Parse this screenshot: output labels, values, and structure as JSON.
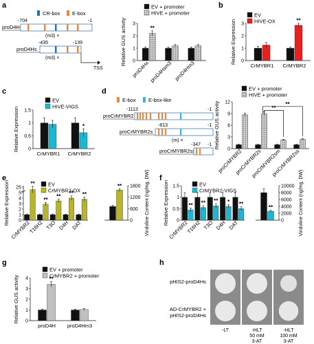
{
  "colors": {
    "black": "#111111",
    "hive_red": "#e8201f",
    "vigs_cyan": "#1bb7d3",
    "ox_olive": "#b8b52a",
    "gray_bar": "#c0c0c0",
    "grid_bar": "#8f8f8f",
    "cr_box": "#2f6fb5",
    "e_box": "#e88a3c",
    "e_box_like": "#38b8dc",
    "yeast_bg": "#8b8b8b",
    "yeast_colony": "#e9e9e9"
  },
  "panels": {
    "a": {
      "label": "a",
      "diagram": {
        "legend_cr": "CR-box",
        "legend_e": "E-box",
        "pro1": "proD4H",
        "pro1_start": "-704",
        "pro1_end": "-1",
        "mut": "(m3) ×",
        "pro2": "proD4Hs",
        "pro2_start": "-435",
        "pro2_end": "-139",
        "mut2": "(m3) ×",
        "tss": "TSS"
      },
      "legend": [
        "EV + promoter",
        "HIVE + promoter"
      ]
    },
    "b": {
      "label": "b",
      "legend": [
        "EV",
        "HIVE-OX"
      ]
    },
    "c": {
      "label": "c",
      "legend": [
        "EV",
        "HIVE-VIGS"
      ]
    },
    "d": {
      "label": "d",
      "diagram": {
        "legend_e": "E-box",
        "legend_el": "E-box-like",
        "pro1": "proCrMYBR2",
        "pro1_start": "-1113",
        "pro1_end": "-1",
        "pro2": "proCrMYBR2s",
        "pro2_start": "-813",
        "pro2_end": "-1",
        "mut": "(m) ×",
        "pro3": "proCrMYBR2ss",
        "pro3_start": "-347",
        "pro3_end": "-1"
      },
      "legend": [
        "EV + promoter",
        "HIVE + promoter"
      ]
    },
    "e": {
      "label": "e",
      "legend": [
        "EV",
        "CrMYBR2-OX"
      ]
    },
    "f": {
      "label": "f",
      "legend": [
        "EV",
        "CrMYBR2-VIGS"
      ]
    },
    "g": {
      "label": "g",
      "legend": [
        "EV + promoter",
        "CrMYBR2 + promoter"
      ]
    },
    "h": {
      "label": "h",
      "rows": [
        "pHIS2-proD4Hs",
        "AD-CrMYBR2 +\npHIS2-proD4Hs"
      ],
      "cols": [
        "-LT",
        "-HLT\n50 mM\n3-AT",
        "-HLT\n100 mM\n3-AT"
      ],
      "growth": [
        [
          1,
          1,
          0.8
        ],
        [
          1,
          1,
          0.95
        ]
      ]
    }
  },
  "chart_data": [
    {
      "panel": "a",
      "type": "bar",
      "categories": [
        "proD4Hs",
        "proD4Hsm3",
        "proD4Hm3"
      ],
      "series": [
        {
          "name": "EV + promoter",
          "values": [
            1.0,
            1.0,
            1.0
          ],
          "errors": [
            0.1,
            0.1,
            0.1
          ]
        },
        {
          "name": "HIVE + promoter",
          "values": [
            2.2,
            1.2,
            1.2
          ],
          "errors": [
            0.2,
            0.1,
            0.1
          ]
        }
      ],
      "significance": [
        "**",
        "",
        ""
      ],
      "ylabel": "Relative GUS activity",
      "ylim": [
        0,
        3
      ],
      "yticks": [
        0,
        1,
        2,
        3
      ]
    },
    {
      "panel": "b",
      "type": "bar",
      "categories": [
        "CrMYBR1",
        "CrMYBR2"
      ],
      "series": [
        {
          "name": "EV",
          "values": [
            1.0,
            1.0
          ],
          "errors": [
            0.15,
            0.1
          ]
        },
        {
          "name": "HIVE-OX",
          "values": [
            1.25,
            2.85
          ],
          "errors": [
            0.2,
            0.15
          ]
        }
      ],
      "significance": [
        "",
        "**"
      ],
      "ylabel": "Relative Expression",
      "ylim": [
        0,
        3
      ],
      "yticks": [
        0,
        1,
        2,
        3
      ]
    },
    {
      "panel": "c",
      "type": "bar",
      "categories": [
        "CrMYBR1",
        "CrMYBR2"
      ],
      "series": [
        {
          "name": "EV",
          "values": [
            1.0,
            1.0
          ],
          "errors": [
            0.2,
            0.2
          ]
        },
        {
          "name": "HIVE-VIGS",
          "values": [
            0.95,
            0.62
          ],
          "errors": [
            0.15,
            0.15
          ]
        }
      ],
      "significance": [
        "",
        "*"
      ],
      "ylabel": "Relative Expression",
      "ylim": [
        0,
        1.5
      ],
      "yticks": [
        0,
        0.5,
        1,
        1.5
      ]
    },
    {
      "panel": "d",
      "type": "bar",
      "categories": [
        "proCrMYBR2",
        "proCrMYBR2s",
        "proCrMYBR2sm",
        "proCrMYBR2ss"
      ],
      "series": [
        {
          "name": "EV + promoter",
          "values": [
            1.0,
            1.0,
            1.0,
            1.0
          ],
          "errors": [
            0.1,
            0.1,
            0.1,
            0.1
          ]
        },
        {
          "name": "HIVE + promoter",
          "values": [
            8.7,
            9.0,
            2.2,
            2.4
          ],
          "errors": [
            0.4,
            0.5,
            0.2,
            0.2
          ]
        }
      ],
      "brackets": [
        [
          "proCrMYBR2s",
          "proCrMYBR2sm",
          "**"
        ],
        [
          "proCrMYBR2s",
          "proCrMYBR2ss",
          "**"
        ]
      ],
      "ylabel": "Relative GUS activity",
      "ylim": [
        0,
        12
      ],
      "yticks": [
        0,
        3,
        6,
        9,
        12
      ]
    },
    {
      "panel": "e",
      "type": "bar",
      "categories": [
        "CrMYBR2",
        "T16H2",
        "T3O",
        "D4H",
        "DAT"
      ],
      "series": [
        {
          "name": "EV",
          "values": [
            1.0,
            1.0,
            1.0,
            1.0,
            1.0
          ],
          "errors": [
            0.1,
            0.1,
            0.1,
            0.1,
            0.1
          ]
        },
        {
          "name": "CrMYBR2-OX",
          "values": [
            22.0,
            2.9,
            3.5,
            4.0,
            3.8
          ],
          "errors": [
            4.0,
            0.3,
            0.3,
            0.4,
            0.4
          ]
        }
      ],
      "significance": [
        "**",
        "**",
        "**",
        "**",
        "**"
      ],
      "ylabel": "Relative Expression",
      "yticks": [
        0,
        1,
        2,
        3,
        4,
        5,
        25
      ],
      "secondary": {
        "categories": [
          "EV",
          "CrMYBR2-OX"
        ],
        "values": [
          720,
          1570
        ],
        "errors": [
          60,
          70
        ],
        "significance": [
          "",
          "**"
        ],
        "ylabel": "Vindoline Content (ng/mg, DW)",
        "ylim": [
          0,
          1800
        ],
        "yticks": [
          0,
          600,
          1200,
          1800
        ]
      }
    },
    {
      "panel": "f",
      "type": "bar",
      "categories": [
        "CrMYBR2",
        "T16H2",
        "T3O",
        "D4H",
        "DAT"
      ],
      "series": [
        {
          "name": "EV",
          "values": [
            1.0,
            1.0,
            1.0,
            1.0,
            1.0
          ],
          "errors": [
            0.2,
            0.2,
            0.2,
            0.2,
            0.2
          ]
        },
        {
          "name": "CrMYBR2-VIGS",
          "values": [
            0.45,
            0.55,
            0.62,
            0.6,
            0.5
          ],
          "errors": [
            0.08,
            0.08,
            0.1,
            0.08,
            0.08
          ]
        }
      ],
      "significance": [
        "**",
        "**",
        "**",
        "*",
        "**"
      ],
      "ylabel": "Relative Expression",
      "ylim": [
        0,
        1.5
      ],
      "yticks": [
        0,
        0.5,
        1,
        1.5
      ],
      "secondary": {
        "categories": [
          "EV",
          "CrMYBR2-VIGS"
        ],
        "values": [
          8000,
          2600
        ],
        "errors": [
          1200,
          300
        ],
        "significance": [
          "",
          "**"
        ],
        "ylabel": "Vindoline Content (ng/mg, DW)",
        "ylim": [
          0,
          10000
        ],
        "yticks": [
          0,
          2000,
          4000,
          6000,
          8000,
          10000
        ]
      }
    },
    {
      "panel": "g",
      "type": "bar",
      "categories": [
        "proD4H",
        "proD4Hm3"
      ],
      "series": [
        {
          "name": "EV + promoter",
          "values": [
            1.0,
            1.0
          ],
          "errors": [
            0.08,
            0.08
          ]
        },
        {
          "name": "CrMYBR2 + promoter",
          "values": [
            3.4,
            1.05
          ],
          "errors": [
            0.25,
            0.08
          ]
        }
      ],
      "significance": [
        "**",
        ""
      ],
      "ylabel": "Relative GUS activity",
      "ylim": [
        0,
        4
      ],
      "yticks": [
        0,
        1,
        2,
        3,
        4
      ]
    }
  ]
}
